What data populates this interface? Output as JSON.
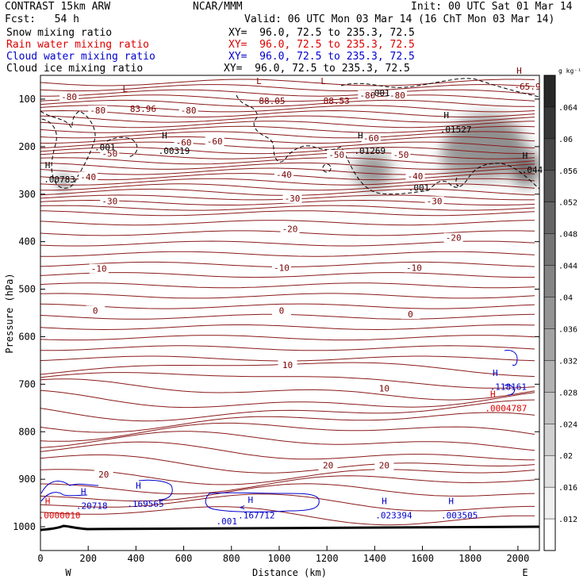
{
  "header": {
    "model": "CONTRAST 15km ARW",
    "org": "NCAR/MMM",
    "init": "Init: 00 UTC Sat 01 Mar 14",
    "fcst": "Fcst:   54 h",
    "valid": "Valid: 06 UTC Mon 03 Mar 14 (16 ChT Mon 03 Mar 14)"
  },
  "legend": [
    {
      "name": "Snow mixing ratio",
      "xy": "XY=  96.0, 72.5 to 235.3, 72.5",
      "color": "#000000"
    },
    {
      "name": "Rain water mixing ratio",
      "xy": "XY=  96.0, 72.5 to 235.3, 72.5",
      "color": "#dd0000"
    },
    {
      "name": "Cloud water mixing ratio",
      "xy": "XY=  96.0, 72.5 to 235.3, 72.5",
      "color": "#0000cc"
    },
    {
      "name": "Cloud ice mixing ratio",
      "xy": "XY=  96.0, 72.5 to 235.3, 72.5",
      "color": "#000000"
    }
  ],
  "chart_data": {
    "type": "cross-section",
    "xlabel": "Distance (km)",
    "ylabel": "Pressure (hPa)",
    "xlim": [
      0,
      2090
    ],
    "ylim": [
      1050,
      50
    ],
    "x_ticks": [
      0,
      200,
      400,
      600,
      800,
      1000,
      1200,
      1400,
      1600,
      1800,
      2000
    ],
    "y_ticks": [
      100,
      200,
      300,
      400,
      500,
      600,
      700,
      800,
      900,
      1000
    ],
    "endpoints": {
      "left": "W",
      "right": "E"
    },
    "colorbar": {
      "unit": "g kg⁻¹",
      "ticks": [
        ".012",
        ".016",
        ".02",
        ".024",
        ".028",
        ".032",
        ".036",
        ".04",
        ".044",
        ".048",
        ".052",
        ".056",
        ".06",
        ".064"
      ]
    },
    "temperature_labels": [
      {
        "text": "-80",
        "x": 120,
        "p": 98
      },
      {
        "text": "-80",
        "x": 240,
        "p": 127
      },
      {
        "text": "-80",
        "x": 620,
        "p": 127
      },
      {
        "text": "-80",
        "x": 1370,
        "p": 95
      },
      {
        "text": "-80",
        "x": 1495,
        "p": 95
      },
      {
        "text": "-60",
        "x": 600,
        "p": 194
      },
      {
        "text": "-60",
        "x": 730,
        "p": 192
      },
      {
        "text": "-60",
        "x": 1385,
        "p": 185
      },
      {
        "text": "-50",
        "x": 290,
        "p": 218
      },
      {
        "text": "-50",
        "x": 1240,
        "p": 220
      },
      {
        "text": "-50",
        "x": 1510,
        "p": 220
      },
      {
        "text": "-40",
        "x": 200,
        "p": 267
      },
      {
        "text": "-40",
        "x": 1020,
        "p": 262
      },
      {
        "text": "-40",
        "x": 1570,
        "p": 265
      },
      {
        "text": "-30",
        "x": 290,
        "p": 318
      },
      {
        "text": "-30",
        "x": 1055,
        "p": 312
      },
      {
        "text": "-30",
        "x": 1650,
        "p": 318
      },
      {
        "text": "-20",
        "x": 1045,
        "p": 376
      },
      {
        "text": "-20",
        "x": 1730,
        "p": 395
      },
      {
        "text": "-10",
        "x": 245,
        "p": 460
      },
      {
        "text": "-10",
        "x": 1010,
        "p": 458
      },
      {
        "text": "-10",
        "x": 1565,
        "p": 458
      },
      {
        "text": "0",
        "x": 230,
        "p": 548
      },
      {
        "text": "0",
        "x": 1010,
        "p": 548
      },
      {
        "text": "0",
        "x": 1550,
        "p": 556
      },
      {
        "text": "10",
        "x": 1035,
        "p": 663
      },
      {
        "text": "10",
        "x": 1440,
        "p": 712
      },
      {
        "text": "20",
        "x": 265,
        "p": 893
      },
      {
        "text": "20",
        "x": 1205,
        "p": 874
      },
      {
        "text": "20",
        "x": 1440,
        "p": 874
      }
    ],
    "extrema_labels": [
      {
        "text": "L",
        "x": 355,
        "p": 85,
        "color": "#7a0000"
      },
      {
        "text": "83.96",
        "x": 430,
        "p": 127,
        "color": "#7a0000"
      },
      {
        "text": "L",
        "x": 915,
        "p": 68,
        "color": "#7a0000"
      },
      {
        "text": "88.05",
        "x": 970,
        "p": 110,
        "color": "#7a0000"
      },
      {
        "text": "L",
        "x": 1185,
        "p": 68,
        "color": "#7a0000"
      },
      {
        "text": "88.53",
        "x": 1240,
        "p": 110,
        "color": "#7a0000"
      },
      {
        "text": "H",
        "x": 2005,
        "p": 47,
        "color": "#7a0000"
      },
      {
        "text": "-65.9",
        "x": 2040,
        "p": 80,
        "color": "#7a0000"
      },
      {
        "text": ".001",
        "x": 1420,
        "p": 93,
        "color": "#000000"
      },
      {
        "text": "H",
        "x": 1700,
        "p": 140,
        "color": "#000000"
      },
      {
        "text": ".01527",
        "x": 1740,
        "p": 170,
        "color": "#000000"
      },
      {
        "text": "H",
        "x": 1340,
        "p": 183,
        "color": "#000000"
      },
      {
        "text": ".01269",
        "x": 1380,
        "p": 215,
        "color": "#000000"
      },
      {
        "text": "H",
        "x": 520,
        "p": 183,
        "color": "#000000"
      },
      {
        "text": ".00319",
        "x": 560,
        "p": 215,
        "color": "#000000"
      },
      {
        "text": ".001",
        "x": 270,
        "p": 208,
        "color": "#000000"
      },
      {
        "text": "H",
        "x": 30,
        "p": 245,
        "color": "#000000"
      },
      {
        "text": ".00783",
        "x": 80,
        "p": 275,
        "color": "#000000"
      },
      {
        "text": "H",
        "x": 2030,
        "p": 225,
        "color": "#000000"
      },
      {
        "text": ".044",
        "x": 2060,
        "p": 255,
        "color": "#000000"
      },
      {
        "text": ".001",
        "x": 1585,
        "p": 293,
        "color": "#000000"
      },
      {
        "text": "H",
        "x": 1905,
        "p": 683,
        "color": "#0000cc"
      },
      {
        "text": ".118161",
        "x": 1960,
        "p": 712,
        "color": "#0000cc"
      },
      {
        "text": "H",
        "x": 1895,
        "p": 727,
        "color": "#dd0000"
      },
      {
        "text": ".0004787",
        "x": 1950,
        "p": 757,
        "color": "#dd0000"
      },
      {
        "text": "H",
        "x": 180,
        "p": 932,
        "color": "#0000cc"
      },
      {
        "text": ".20718",
        "x": 215,
        "p": 962,
        "color": "#0000cc"
      },
      {
        "text": "H",
        "x": 410,
        "p": 920,
        "color": "#0000cc"
      },
      {
        "text": ".169565",
        "x": 440,
        "p": 958,
        "color": "#0000cc"
      },
      {
        "text": "H",
        "x": 30,
        "p": 952,
        "color": "#dd0000"
      },
      {
        "text": ".0000010",
        "x": 80,
        "p": 982,
        "color": "#dd0000"
      },
      {
        "text": "<",
        "x": 845,
        "p": 965,
        "color": "#0000cc"
      },
      {
        "text": "H",
        "x": 880,
        "p": 950,
        "color": "#0000cc"
      },
      {
        "text": ".167712",
        "x": 905,
        "p": 982,
        "color": "#0000cc"
      },
      {
        "text": ".001",
        "x": 780,
        "p": 995,
        "color": "#0000cc"
      },
      {
        "text": "H",
        "x": 1440,
        "p": 952,
        "color": "#0000cc"
      },
      {
        "text": ".023394",
        "x": 1480,
        "p": 982,
        "color": "#0000cc"
      },
      {
        "text": "H",
        "x": 1720,
        "p": 952,
        "color": "#0000cc"
      },
      {
        "text": ".003505",
        "x": 1755,
        "p": 982,
        "color": "#0000cc"
      }
    ]
  }
}
